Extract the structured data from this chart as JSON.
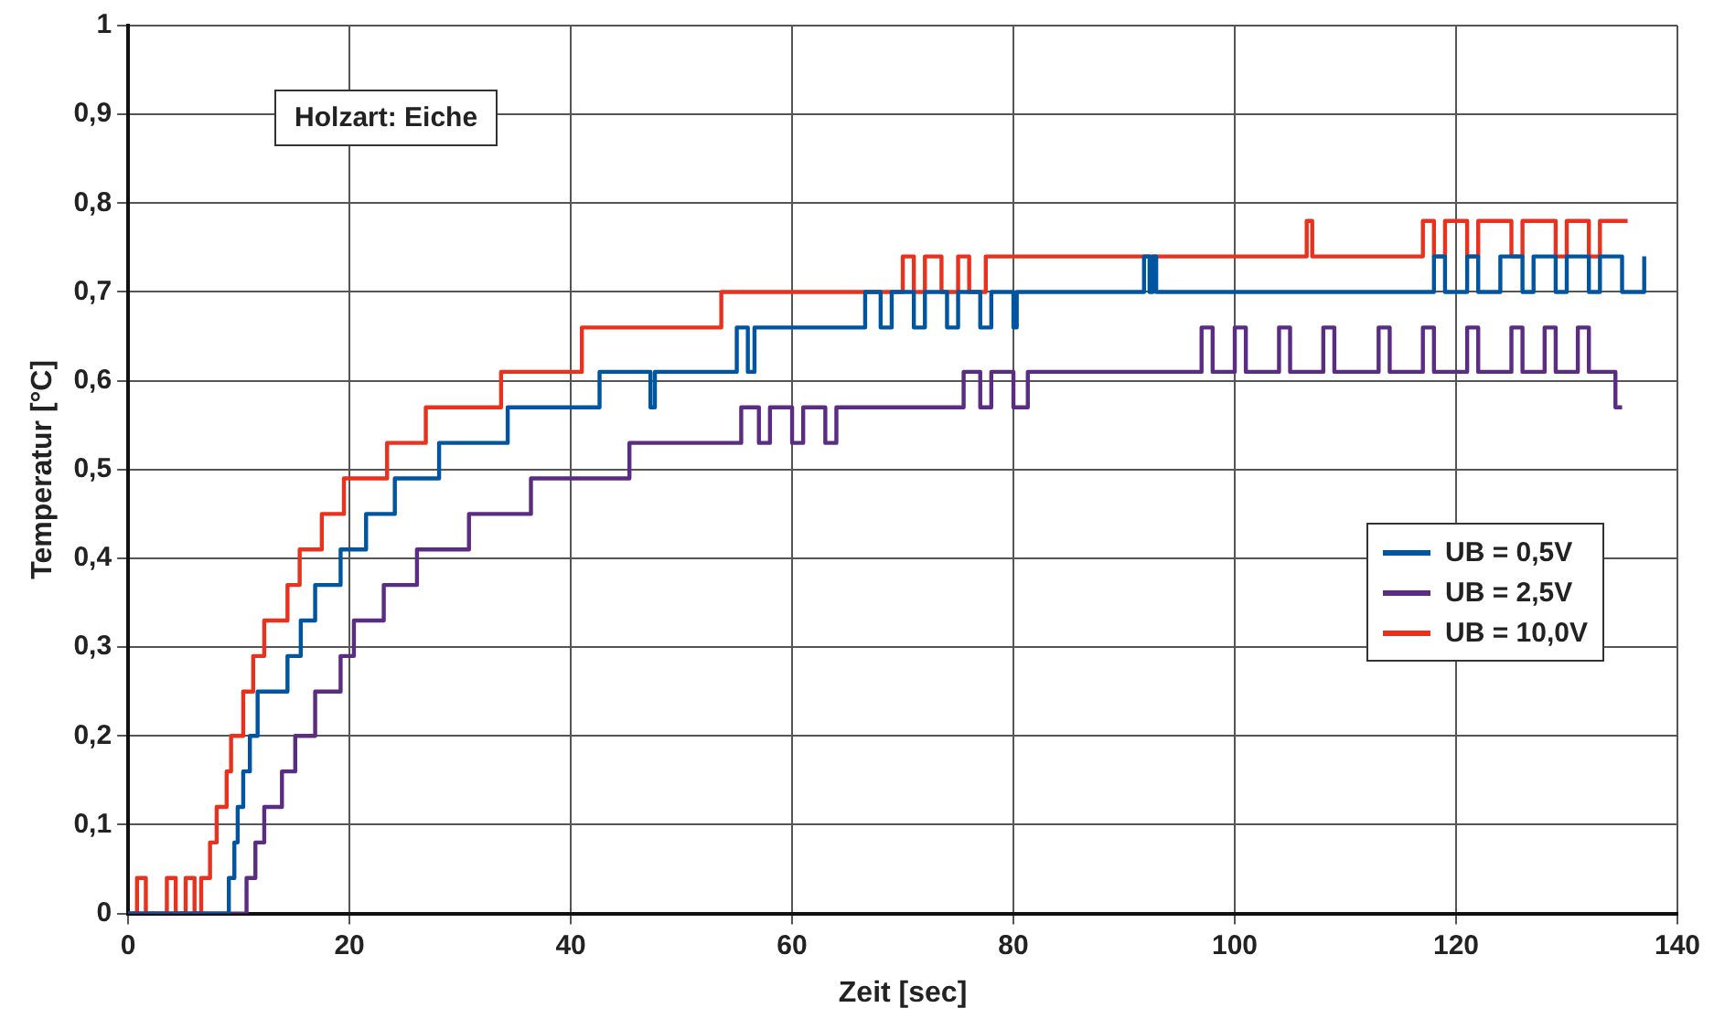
{
  "chart_data": {
    "type": "step",
    "xlabel": "Zeit [sec]",
    "ylabel": "Temperatur [°C]",
    "annotations": [
      "Holzart: Eiche"
    ],
    "xlim": [
      0,
      140
    ],
    "xticks": [
      0,
      20,
      40,
      60,
      80,
      100,
      120,
      140
    ],
    "ylim": [
      0,
      1
    ],
    "yticks": [
      0,
      {
        "value": 0.1,
        "label": "0,1"
      },
      {
        "value": 0.2,
        "label": "0,2"
      },
      {
        "value": 0.3,
        "label": "0,3"
      },
      {
        "value": 0.4,
        "label": "0,4"
      },
      {
        "value": 0.5,
        "label": "0,5"
      },
      {
        "value": 0.6,
        "label": "0,6"
      },
      {
        "value": 0.7,
        "label": "0,7"
      },
      {
        "value": 0.8,
        "label": "0,8"
      },
      {
        "value": 0.9,
        "label": "0,9"
      },
      1
    ],
    "grid": true,
    "legend": "right",
    "marker": "none",
    "line_style": "solid",
    "series": [
      {
        "name": "UB = 0,5V",
        "color": "#0055a0",
        "x": [
          0,
          9.1,
          9.6,
          9.9,
          10.4,
          11.0,
          11.7,
          14.4,
          15.6,
          16.9,
          19.2,
          21.5,
          24.1,
          28.1,
          34.3,
          42.6,
          47.2,
          47.6,
          55.0,
          56.0,
          56.6,
          66.6,
          68,
          69,
          71,
          72,
          74,
          75,
          77,
          78,
          80,
          80.3,
          91.8,
          92.3,
          92.6,
          92.9,
          118,
          119,
          121,
          122,
          124,
          126,
          127,
          129,
          130,
          132,
          133,
          135,
          137
        ],
        "values": [
          0,
          0.04,
          0.08,
          0.12,
          0.16,
          0.2,
          0.25,
          0.29,
          0.33,
          0.37,
          0.41,
          0.45,
          0.49,
          0.53,
          0.57,
          0.61,
          0.57,
          0.61,
          0.66,
          0.61,
          0.66,
          0.7,
          0.66,
          0.7,
          0.66,
          0.7,
          0.66,
          0.7,
          0.66,
          0.7,
          0.66,
          0.7,
          0.74,
          0.7,
          0.74,
          0.7,
          0.74,
          0.7,
          0.74,
          0.7,
          0.74,
          0.7,
          0.74,
          0.7,
          0.74,
          0.7,
          0.74,
          0.7,
          0.74
        ]
      },
      {
        "name": "UB = 2,5V",
        "color": "#5a2d82",
        "x": [
          0,
          10.7,
          11.5,
          12.3,
          13.9,
          15.1,
          16.9,
          19.2,
          20.4,
          23.1,
          26.1,
          30.8,
          36.4,
          45.3,
          55.4,
          57,
          58,
          60,
          61,
          63,
          64,
          65.4,
          75.5,
          77,
          78,
          80,
          81.3,
          97,
          98,
          100,
          101,
          104,
          105,
          108,
          109,
          113,
          114,
          117,
          118,
          121,
          122,
          125,
          126,
          128,
          129,
          131,
          132,
          133.5,
          134.4,
          135
        ],
        "values": [
          0,
          0.04,
          0.08,
          0.12,
          0.16,
          0.2,
          0.25,
          0.29,
          0.33,
          0.37,
          0.41,
          0.45,
          0.49,
          0.53,
          0.57,
          0.53,
          0.57,
          0.53,
          0.57,
          0.53,
          0.57,
          0.57,
          0.61,
          0.57,
          0.61,
          0.57,
          0.61,
          0.66,
          0.61,
          0.66,
          0.61,
          0.66,
          0.61,
          0.66,
          0.61,
          0.66,
          0.61,
          0.66,
          0.61,
          0.66,
          0.61,
          0.66,
          0.61,
          0.66,
          0.61,
          0.66,
          0.61,
          0.61,
          0.57,
          0.57
        ]
      },
      {
        "name": "UB = 10,0V",
        "color": "#e8321e",
        "x": [
          0,
          0.8,
          1.6,
          3.5,
          4.3,
          5.2,
          6.0,
          6.6,
          7.4,
          8.0,
          8.9,
          9.3,
          10.4,
          11.3,
          12.3,
          14.4,
          15.5,
          17.5,
          19.5,
          23.4,
          26.9,
          33.7,
          41.0,
          53.6,
          70,
          71,
          72,
          73.5,
          75,
          76,
          77.5,
          106.5,
          107,
          117,
          118,
          119,
          121,
          122,
          125,
          126,
          129,
          130,
          132,
          133,
          135.5
        ],
        "values": [
          0,
          0.04,
          0,
          0.04,
          0,
          0.04,
          0,
          0.04,
          0.08,
          0.12,
          0.16,
          0.2,
          0.25,
          0.29,
          0.33,
          0.37,
          0.41,
          0.45,
          0.49,
          0.53,
          0.57,
          0.61,
          0.66,
          0.7,
          0.74,
          0.7,
          0.74,
          0.7,
          0.74,
          0.7,
          0.74,
          0.78,
          0.74,
          0.78,
          0.74,
          0.78,
          0.74,
          0.78,
          0.74,
          0.78,
          0.74,
          0.78,
          0.74,
          0.78,
          0.78
        ]
      }
    ]
  }
}
